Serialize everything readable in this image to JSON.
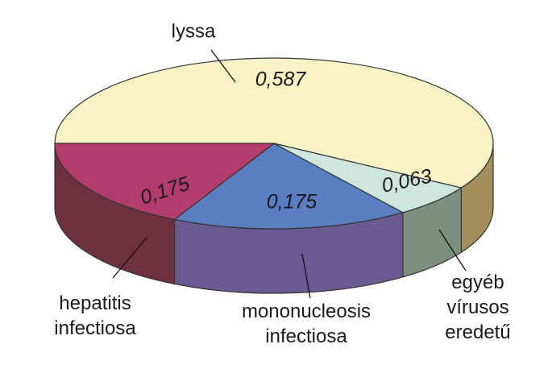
{
  "chart_data": {
    "type": "pie",
    "categories": [
      "lyssa",
      "egyéb vírusos eredetű",
      "mononucleosis infectiosa",
      "hepatitis infectiosa"
    ],
    "values": [
      0.587,
      0.063,
      0.175,
      0.175
    ],
    "value_labels": [
      "0,587",
      "0,063",
      "0,175",
      "0,175"
    ],
    "colors": [
      "#f8f2c4",
      "#cfe6dc",
      "#5b7ec2",
      "#b23c6c"
    ],
    "side_colors": [
      "#a58e5e",
      "#7c907e",
      "#6a5a92",
      "#6e3040"
    ],
    "value_label_colors": [
      "#222222",
      "#222222",
      "#ffffff",
      "#ffffff"
    ]
  }
}
